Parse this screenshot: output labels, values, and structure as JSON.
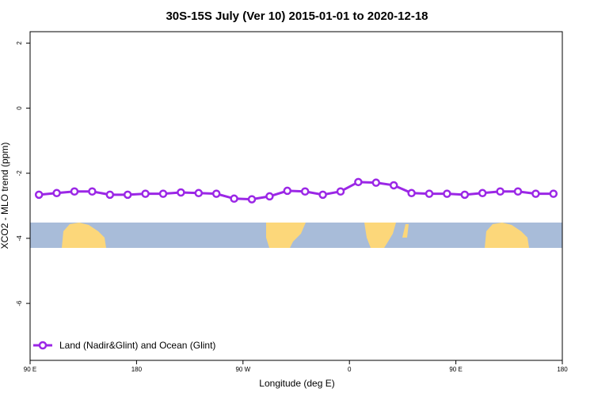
{
  "chart_data": {
    "type": "line",
    "title": "30S-15S July (Ver 10)   2015-01-01 to 2020-12-18",
    "x_label": "Longitude (deg E)",
    "y_label": "XCO2 - MLO trend (ppm)",
    "xlim": [
      90,
      540
    ],
    "xticks": [
      {
        "value": 90,
        "label": "90 E"
      },
      {
        "value": 180,
        "label": "180"
      },
      {
        "value": 270,
        "label": "90 W"
      },
      {
        "value": 360,
        "label": "0"
      },
      {
        "value": 450,
        "label": "90 E"
      },
      {
        "value": 540,
        "label": "180"
      }
    ],
    "ylim": [
      -7.75,
      2.35
    ],
    "yticks": [
      -6,
      -4,
      -2,
      0,
      2
    ],
    "legend_position": "bottom-left",
    "x": [
      97.5,
      112.5,
      127.5,
      142.5,
      157.5,
      172.5,
      187.5,
      202.5,
      217.5,
      232.5,
      247.5,
      262.5,
      277.5,
      292.5,
      307.5,
      322.5,
      337.5,
      352.5,
      367.5,
      382.5,
      397.5,
      412.5,
      427.5,
      442.5,
      457.5,
      472.5,
      487.5,
      502.5,
      517.5,
      532.5
    ],
    "series": [
      {
        "name": "Land (Nadir&Glint) and Ocean (Glint)",
        "color": "#9b27e6",
        "values": [
          -2.66,
          -2.61,
          -2.56,
          -2.56,
          -2.66,
          -2.66,
          -2.63,
          -2.63,
          -2.59,
          -2.61,
          -2.63,
          -2.78,
          -2.8,
          -2.71,
          -2.54,
          -2.56,
          -2.66,
          -2.56,
          -2.27,
          -2.29,
          -2.37,
          -2.61,
          -2.63,
          -2.63,
          -2.66,
          -2.61,
          -2.56,
          -2.56,
          -2.63,
          -2.63
        ]
      }
    ]
  }
}
